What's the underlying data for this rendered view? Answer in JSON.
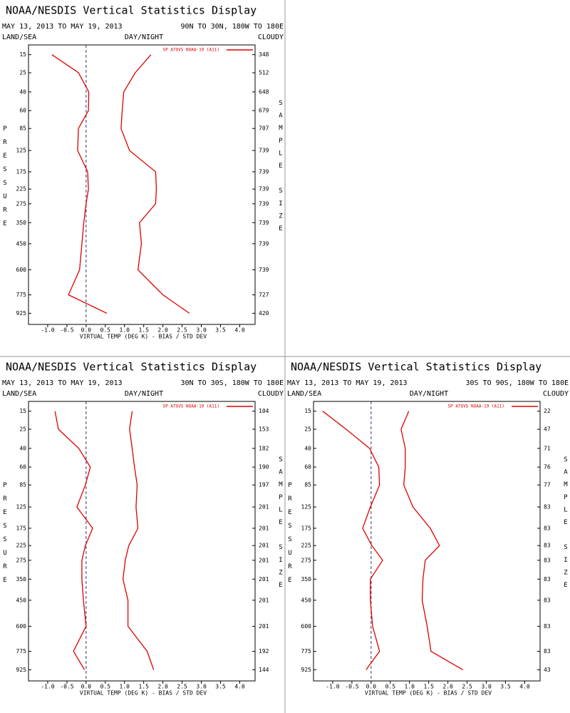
{
  "chart_data": [
    {
      "type": "line",
      "title": "NOAA/NESDIS Vertical Statistics Display",
      "subtitle": "MAY 13, 2013 TO MAY 19, 2013",
      "region": "90N TO 30N, 180W TO 180E",
      "land_sea": "LAND/SEA",
      "day_night": "DAY/NIGHT",
      "cloudy": "CLOUDY",
      "ylabel": "PRESSURE",
      "y2label": "SAMPLE SIZE",
      "xlabel": "VIRTUAL TEMP (DEG K) - BIAS / STD DEV",
      "y": [
        15,
        25,
        40,
        60,
        85,
        125,
        175,
        225,
        275,
        350,
        450,
        600,
        775,
        925
      ],
      "sample_sizes": [
        348,
        512,
        648,
        679,
        707,
        739,
        739,
        739,
        739,
        739,
        739,
        739,
        727,
        420
      ],
      "series": [
        {
          "name": "SP ATOVS NOAA-19 (A11)",
          "color": "#dd0000",
          "values": [
            -0.89,
            -0.2,
            0.07,
            0.06,
            -0.2,
            -0.22,
            0.04,
            0.06,
            0,
            -0.06,
            -0.11,
            -0.17,
            -0.46,
            0.54
          ]
        },
        {
          "color": "#dd0000",
          "values": [
            1.69,
            1.28,
            0.98,
            0.94,
            0.91,
            1.13,
            1.81,
            1.83,
            1.81,
            1.39,
            1.44,
            1.35,
            2.0,
            2.69
          ]
        }
      ],
      "xlim": [
        -1.5,
        4.4
      ],
      "xticks": [
        {
          "value": -1,
          "label": "-1.0"
        },
        -0.5,
        {
          "value": 0,
          "label": "0.0"
        },
        0.5,
        {
          "value": 1,
          "label": "1.0"
        },
        1.5,
        {
          "value": 2,
          "label": "2.0"
        },
        2.5,
        {
          "value": 3,
          "label": "3.0"
        },
        3.5,
        {
          "value": 4,
          "label": "4.0"
        }
      ],
      "ylim": [
        11,
        1025
      ],
      "yticks": [
        15,
        25,
        40,
        60,
        85,
        125,
        175,
        225,
        275,
        350,
        450,
        600,
        775,
        925
      ]
    },
    {
      "type": "line",
      "title": "NOAA/NESDIS Vertical Statistics Display",
      "subtitle": "MAY 13, 2013 TO MAY 19, 2013",
      "region": "30N TO 30S, 180W TO 180E",
      "land_sea": "LAND/SEA",
      "day_night": "DAY/NIGHT",
      "cloudy": "CLOUDY",
      "ylabel": "PRESSURE",
      "y2label": "SAMPLE SIZE",
      "xlabel": "VIRTUAL TEMP (DEG K) - BIAS / STD DEV",
      "y": [
        15,
        25,
        40,
        60,
        85,
        125,
        175,
        225,
        275,
        350,
        450,
        600,
        775,
        925
      ],
      "sample_sizes": [
        104,
        153,
        182,
        190,
        197,
        201,
        201,
        201,
        201,
        201,
        201,
        201,
        192,
        144
      ],
      "series": [
        {
          "name": "SP ATOVS NOAA-19 (A11)",
          "color": "#dd0000",
          "values": [
            -0.81,
            -0.72,
            -0.19,
            0.11,
            -0.02,
            -0.24,
            0.17,
            -0.02,
            -0.11,
            -0.11,
            -0.07,
            0,
            -0.33,
            -0.04
          ]
        },
        {
          "color": "#dd0000",
          "values": [
            1.2,
            1.13,
            1.2,
            1.26,
            1.33,
            1.3,
            1.35,
            1.11,
            1.02,
            0.96,
            1.09,
            1.09,
            1.59,
            1.76
          ]
        }
      ],
      "xlim": [
        -1.5,
        4.4
      ],
      "xticks": [
        {
          "value": -1,
          "label": "-1.0"
        },
        -0.5,
        {
          "value": 0,
          "label": "0.0"
        },
        0.5,
        {
          "value": 1,
          "label": "1.0"
        },
        1.5,
        {
          "value": 2,
          "label": "2.0"
        },
        2.5,
        {
          "value": 3,
          "label": "3.0"
        },
        3.5,
        {
          "value": 4,
          "label": "4.0"
        }
      ],
      "ylim": [
        11,
        1025
      ],
      "yticks": [
        15,
        25,
        40,
        60,
        85,
        125,
        175,
        225,
        275,
        350,
        450,
        600,
        775,
        925
      ]
    },
    {
      "type": "line",
      "title": "NOAA/NESDIS Vertical Statistics Display",
      "subtitle": "MAY 13, 2013 TO MAY 19, 2013",
      "region": "30S TO 90S, 180W TO 180E",
      "land_sea": "LAND/SEA",
      "day_night": "DAY/NIGHT",
      "cloudy": "CLOUDY",
      "ylabel": "PRESSURE",
      "y2label": "SAMPLE SIZE",
      "xlabel": "VIRTUAL TEMP (DEG K) - BIAS / STD DEV",
      "y": [
        15,
        25,
        40,
        60,
        85,
        125,
        175,
        225,
        275,
        350,
        450,
        600,
        775,
        925
      ],
      "sample_sizes": [
        22,
        47,
        71,
        76,
        77,
        83,
        83,
        83,
        83,
        83,
        83,
        83,
        83,
        43
      ],
      "series": [
        {
          "name": "SP ATOVS NOAA-19 (A11)",
          "color": "#dd0000",
          "values": [
            -1.26,
            -0.65,
            -0.04,
            0.2,
            0.22,
            -0.02,
            -0.22,
            0.02,
            0.3,
            -0.02,
            -0.02,
            0.04,
            0.22,
            -0.13
          ]
        },
        {
          "color": "#dd0000",
          "values": [
            0.98,
            0.78,
            0.89,
            0.89,
            0.85,
            1.09,
            1.54,
            1.78,
            1.41,
            1.35,
            1.33,
            1.46,
            1.56,
            2.39
          ]
        }
      ],
      "xlim": [
        -1.5,
        4.4
      ],
      "xticks": [
        {
          "value": -1,
          "label": "-1.0"
        },
        -0.5,
        {
          "value": 0,
          "label": "0.0"
        },
        0.5,
        {
          "value": 1,
          "label": "1.0"
        },
        1.5,
        {
          "value": 2,
          "label": "2.0"
        },
        2.5,
        {
          "value": 3,
          "label": "3.0"
        },
        3.5,
        {
          "value": 4,
          "label": "4.0"
        }
      ],
      "ylim": [
        11,
        1025
      ],
      "yticks": [
        15,
        25,
        40,
        60,
        85,
        125,
        175,
        225,
        275,
        350,
        450,
        600,
        775,
        925
      ]
    }
  ]
}
